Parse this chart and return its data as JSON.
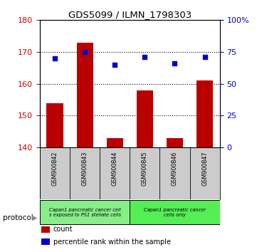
{
  "title": "GDS5099 / ILMN_1798303",
  "samples": [
    "GSM900842",
    "GSM900843",
    "GSM900844",
    "GSM900845",
    "GSM900846",
    "GSM900847"
  ],
  "bar_values": [
    154,
    173,
    143,
    158,
    143,
    161
  ],
  "bar_bottom": 140,
  "percentile_values": [
    168,
    170,
    166,
    168.5,
    166.5,
    168.5
  ],
  "ylim": [
    140,
    180
  ],
  "yticks_left": [
    140,
    150,
    160,
    170,
    180
  ],
  "yticks_right": [
    0,
    25,
    50,
    75,
    100
  ],
  "bar_color": "#bb0000",
  "dot_color": "#0000cc",
  "protocol_groups": [
    {
      "label": "Capan1 pancreatic cancer cell\ns exposed to PS1 stellate cells",
      "start": 0,
      "end": 2,
      "color": "#88ee88"
    },
    {
      "label": "Capan1 pancreatic cancer\ncells only",
      "start": 3,
      "end": 5,
      "color": "#55ee55"
    }
  ],
  "legend_items": [
    {
      "color": "#bb0000",
      "label": "count"
    },
    {
      "color": "#0000cc",
      "label": "percentile rank within the sample"
    }
  ],
  "protocol_label": "protocol",
  "tick_label_color_left": "#cc0000",
  "tick_label_color_right": "#0000cc",
  "background_color": "#ffffff",
  "plot_bg_color": "#ffffff",
  "xlabel_area_color": "#cccccc",
  "dotted_grid_lines": [
    150,
    160,
    170
  ],
  "bar_width": 0.55
}
